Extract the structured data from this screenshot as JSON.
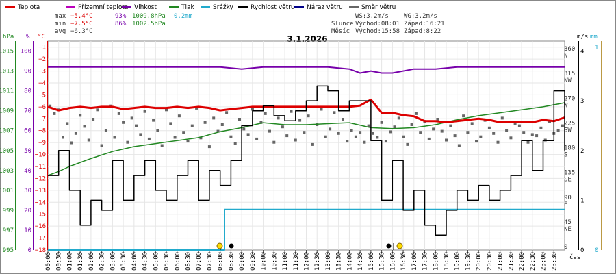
{
  "chart_data": {
    "type": "line",
    "title": "3.1.2026",
    "x_axis_label": "čas",
    "legend": [
      {
        "name": "Teplota",
        "color": "#dd0000"
      },
      {
        "name": "Přízemní teplota",
        "color": "#bb00bb"
      },
      {
        "name": "Vlhkost",
        "color": "#7700aa"
      },
      {
        "name": "Tlak",
        "color": "#228822"
      },
      {
        "name": "Srážky",
        "color": "#22aacc"
      },
      {
        "name": "Rychlost větru",
        "color": "#000000"
      },
      {
        "name": "Náraz větru",
        "color": "#000088"
      },
      {
        "name": "Směr větru",
        "color": "#666666"
      }
    ],
    "stats": {
      "max": {
        "label": "max",
        "temp": "−5.4°C",
        "hum": "93%",
        "press": "1009.8hPa",
        "rain": "0.2mm"
      },
      "min": {
        "label": "min",
        "temp": "−7.5°C",
        "hum": "86%",
        "press": "1002.5hPa"
      },
      "avg": {
        "label": "avg",
        "temp": "−6.3°C"
      }
    },
    "wind_info": {
      "ws": "WS:3.2m/s",
      "wg": "WG:3.2m/s"
    },
    "sun": {
      "label": "Slunce",
      "rise": "Východ:08:01",
      "set": "Západ:16:21"
    },
    "moon": {
      "label": "Měsíc",
      "rise": "Východ:15:58",
      "set": "Západ:8:22"
    },
    "axes": {
      "hpa": {
        "unit": "hPa",
        "ticks": [
          "995",
          "997",
          "999",
          "1001",
          "1003",
          "1005",
          "1007",
          "1009",
          "1011",
          "1013",
          "1015"
        ]
      },
      "pct": {
        "unit": "%",
        "ticks": [
          "0",
          "10",
          "20",
          "30",
          "40",
          "50",
          "60",
          "70",
          "80",
          "90",
          "100"
        ]
      },
      "temp": {
        "unit": "°C",
        "ticks": [
          "−18",
          "−17",
          "−16",
          "−15",
          "−14",
          "−13",
          "−12",
          "−11",
          "−10",
          "−9",
          "−8",
          "−7",
          "−6",
          "−5",
          "−4",
          "−3",
          "−2",
          "−1"
        ]
      },
      "dir": {
        "ticks": [
          "0",
          "45 NE",
          "90 E",
          "135 SE",
          "180 S",
          "225 SW",
          "270 W",
          "315 NW",
          "360 N"
        ]
      },
      "ms": {
        "unit": "m/s",
        "ticks": [
          "0",
          "1",
          "2",
          "3",
          "4"
        ]
      },
      "mm": {
        "unit": "mm",
        "ticks": [
          "0",
          "1"
        ]
      },
      "time": [
        "00:00",
        "00:30",
        "01:00",
        "01:30",
        "02:00",
        "02:30",
        "03:00",
        "03:30",
        "04:00",
        "04:30",
        "05:00",
        "05:30",
        "06:00",
        "06:30",
        "07:00",
        "07:30",
        "08:00",
        "08:30",
        "09:00",
        "09:30",
        "10:00",
        "10:30",
        "11:00",
        "11:30",
        "12:00",
        "12:30",
        "13:00",
        "13:30",
        "14:00",
        "14:30",
        "15:00",
        "15:30",
        "16:00",
        "16:30",
        "17:00",
        "17:30",
        "18:00",
        "18:30",
        "19:00",
        "19:30",
        "20:00",
        "20:30",
        "21:00",
        "21:30",
        "22:00",
        "22:30",
        "23:00",
        "23:30"
      ]
    },
    "series": {
      "temperature_c": {
        "hours": [
          0,
          0.5,
          1,
          1.5,
          2,
          2.5,
          3,
          3.5,
          4,
          4.5,
          5,
          5.5,
          6,
          6.5,
          7,
          7.5,
          8,
          8.5,
          9,
          9.5,
          10,
          10.5,
          11,
          11.5,
          12,
          12.5,
          13,
          13.5,
          14,
          14.5,
          15,
          15.5,
          16,
          16.5,
          17,
          17.5,
          18,
          18.5,
          19,
          19.5,
          20,
          20.5,
          21,
          21.5,
          22,
          22.5,
          23,
          23.5,
          24
        ],
        "values": [
          -6.0,
          -6.3,
          -6.1,
          -6.0,
          -6.1,
          -6.0,
          -6.0,
          -6.2,
          -6.1,
          -6.0,
          -6.1,
          -6.1,
          -6.0,
          -6.1,
          -6.0,
          -6.1,
          -6.3,
          -6.2,
          -6.1,
          -6.0,
          -6.0,
          -6.0,
          -6.0,
          -6.0,
          -6.0,
          -6.0,
          -6.0,
          -6.0,
          -6.0,
          -5.9,
          -5.4,
          -6.5,
          -6.5,
          -6.7,
          -6.8,
          -7.2,
          -7.2,
          -7.3,
          -7.2,
          -7.1,
          -7.0,
          -7.1,
          -7.3,
          -7.3,
          -7.3,
          -7.3,
          -7.1,
          -7.2,
          -6.9
        ]
      },
      "humidity_pct": {
        "hours": [
          0,
          2,
          4,
          6,
          8,
          9,
          10,
          12,
          13,
          14,
          14.5,
          15,
          15.5,
          16,
          17,
          18,
          19,
          20,
          21,
          22,
          23,
          24
        ],
        "values": [
          92,
          92,
          92,
          92,
          92,
          91,
          92,
          92,
          92,
          91,
          89,
          90,
          89,
          89,
          91,
          91,
          92,
          92,
          92,
          92,
          92,
          92
        ]
      },
      "pressure_hpa": {
        "hours": [
          0,
          0.5,
          1,
          2,
          3,
          4,
          5,
          6,
          7,
          8,
          9,
          10,
          11,
          12,
          13,
          14,
          15,
          16,
          17,
          18,
          19,
          20,
          21,
          22,
          23,
          24
        ],
        "values": [
          1002.5,
          1002.9,
          1003.4,
          1004.2,
          1004.9,
          1005.4,
          1005.7,
          1006.0,
          1006.3,
          1006.9,
          1007.3,
          1007.8,
          1007.6,
          1007.6,
          1007.7,
          1007.8,
          1007.3,
          1007.2,
          1007.3,
          1007.6,
          1008.1,
          1008.5,
          1008.8,
          1009.1,
          1009.4,
          1009.8
        ]
      },
      "rain_mm": {
        "hours": [
          0,
          8,
          8.2,
          24
        ],
        "values": [
          0,
          0,
          0.2,
          0.2
        ]
      },
      "wind_speed_ms": {
        "hours": [
          0,
          0.5,
          1,
          1.5,
          2,
          2.5,
          3,
          3.5,
          4,
          4.5,
          5,
          5.5,
          6,
          6.5,
          7,
          7.5,
          8,
          8.5,
          9,
          9.5,
          10,
          10.5,
          11,
          11.5,
          12,
          12.5,
          13,
          13.5,
          14,
          14.5,
          15,
          15.5,
          16,
          16.5,
          17,
          17.5,
          18,
          18.5,
          19,
          19.5,
          20,
          20.5,
          21,
          21.5,
          22,
          22.5,
          23,
          23.5,
          24
        ],
        "values": [
          1.5,
          2.0,
          1.2,
          0.5,
          1.0,
          0.8,
          1.8,
          1.0,
          1.5,
          1.8,
          1.2,
          1.0,
          1.5,
          1.8,
          1.0,
          1.6,
          1.3,
          1.8,
          2.5,
          2.8,
          2.9,
          2.7,
          2.6,
          2.8,
          3.0,
          3.3,
          3.2,
          2.8,
          3.0,
          3.0,
          2.2,
          1.0,
          1.8,
          0.8,
          1.2,
          0.5,
          0.3,
          0.8,
          1.2,
          1.0,
          1.3,
          1.0,
          1.2,
          1.5,
          2.2,
          1.6,
          2.2,
          3.2,
          2.0
        ]
      },
      "wind_dir_deg": {
        "hours": [
          0.1,
          0.3,
          0.5,
          0.7,
          0.9,
          1.1,
          1.3,
          1.5,
          1.7,
          1.9,
          2.1,
          2.3,
          2.5,
          2.7,
          2.9,
          3.1,
          3.3,
          3.5,
          3.7,
          3.9,
          4.1,
          4.3,
          4.5,
          4.7,
          4.9,
          5.1,
          5.3,
          5.5,
          5.7,
          5.9,
          6.1,
          6.3,
          6.5,
          6.7,
          6.9,
          7.1,
          7.3,
          7.5,
          7.7,
          7.9,
          8.1,
          8.3,
          8.5,
          8.7,
          8.9,
          9.1,
          9.3,
          9.5,
          9.7,
          9.9,
          10.1,
          10.3,
          10.5,
          10.7,
          10.9,
          11.1,
          11.3,
          11.5,
          11.7,
          11.9,
          12.1,
          12.3,
          12.5,
          12.7,
          12.9,
          13.1,
          13.3,
          13.5,
          13.7,
          13.9,
          14.1,
          14.3,
          14.5,
          14.7,
          14.9,
          15.1,
          15.3,
          15.5,
          15.7,
          15.9,
          16.1,
          16.3,
          16.5,
          16.7,
          16.9,
          17.1,
          17.3,
          17.5,
          17.7,
          17.9,
          18.1,
          18.3,
          18.5,
          18.7,
          18.9,
          19.1,
          19.3,
          19.5,
          19.7,
          19.9,
          20.1,
          20.3,
          20.5,
          20.7,
          20.9,
          21.1,
          21.3,
          21.5,
          21.7,
          21.9,
          22.1,
          22.3,
          22.5,
          22.7,
          22.9,
          23.1,
          23.3,
          23.5,
          23.7,
          23.9
        ],
        "values": [
          262,
          248,
          255,
          205,
          230,
          195,
          212,
          245,
          225,
          200,
          238,
          255,
          190,
          218,
          262,
          205,
          248,
          232,
          196,
          240,
          226,
          210,
          252,
          202,
          236,
          218,
          190,
          255,
          230,
          205,
          244,
          214,
          198,
          226,
          258,
          204,
          232,
          188,
          240,
          216,
          228,
          250,
          206,
          194,
          238,
          220,
          210,
          256,
          202,
          232,
          248,
          216,
          196,
          240,
          224,
          208,
          252,
          200,
          236,
          214,
          244,
          192,
          228,
          256,
          206,
          220,
          250,
          212,
          238,
          198,
          218,
          206,
          214,
          196,
          226,
          212,
          205,
          232,
          198,
          215,
          224,
          240,
          206,
          192,
          228,
          248,
          214,
          234,
          202,
          220,
          238,
          216,
          200,
          226,
          208,
          190,
          244,
          214,
          230,
          198,
          206,
          236,
          222,
          212,
          196,
          240,
          218,
          204,
          230,
          226,
          214,
          196,
          210,
          208,
          222,
          200,
          234,
          212,
          218,
          226
        ]
      }
    }
  }
}
